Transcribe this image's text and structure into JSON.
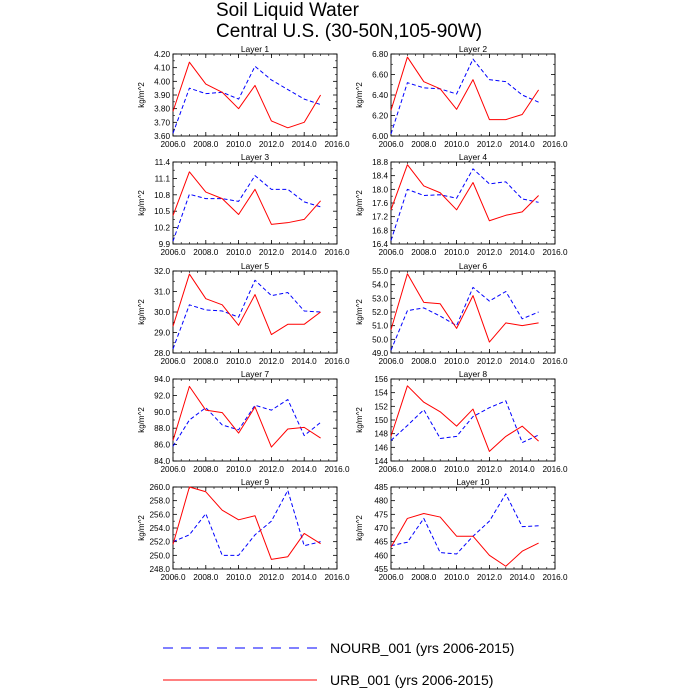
{
  "figure": {
    "title_line1": "Soil Liquid Water",
    "title_line2": "Central U.S. (30-50N,105-90W)",
    "legend": [
      {
        "label": "NOURB_001 (yrs 2006-2015)",
        "color": "#0000ff",
        "dash": true
      },
      {
        "label": "URB_001 (yrs 2006-2015)",
        "color": "#ff0000",
        "dash": false
      }
    ]
  },
  "chart_data": [
    {
      "type": "line",
      "title": "Layer 1",
      "ylabel": "kg/m^2",
      "xlim": [
        2006,
        2016
      ],
      "ylim": [
        3.6,
        4.2
      ],
      "xticks": [
        "2006.0",
        "2008.0",
        "2010.0",
        "2012.0",
        "2014.0",
        "2016.0"
      ],
      "yticks": [
        "3.60",
        "3.70",
        "3.80",
        "3.90",
        "4.00",
        "4.10",
        "4.20"
      ],
      "x": [
        2006,
        2007,
        2008,
        2009,
        2010,
        2011,
        2012,
        2013,
        2014,
        2015
      ],
      "series": [
        {
          "name": "NOURB_001 (yrs 2006-2015)",
          "values": [
            3.62,
            3.95,
            3.91,
            3.92,
            3.87,
            4.11,
            4.01,
            3.94,
            3.87,
            3.83
          ]
        },
        {
          "name": "URB_001 (yrs 2006-2015)",
          "values": [
            3.78,
            4.14,
            3.98,
            3.92,
            3.8,
            3.97,
            3.71,
            3.66,
            3.7,
            3.9
          ]
        }
      ]
    },
    {
      "type": "line",
      "title": "Layer 2",
      "ylabel": "kg/m^2",
      "xlim": [
        2006,
        2016
      ],
      "ylim": [
        6.0,
        6.8
      ],
      "xticks": [
        "2006.0",
        "2008.0",
        "2010.0",
        "2012.0",
        "2014.0",
        "2016.0"
      ],
      "yticks": [
        "6.00",
        "6.20",
        "6.40",
        "6.60",
        "6.80"
      ],
      "x": [
        2006,
        2007,
        2008,
        2009,
        2010,
        2011,
        2012,
        2013,
        2014,
        2015
      ],
      "series": [
        {
          "name": "NOURB_001 (yrs 2006-2015)",
          "values": [
            6.02,
            6.52,
            6.47,
            6.46,
            6.41,
            6.75,
            6.55,
            6.53,
            6.4,
            6.33
          ]
        },
        {
          "name": "URB_001 (yrs 2006-2015)",
          "values": [
            6.25,
            6.77,
            6.53,
            6.46,
            6.26,
            6.55,
            6.16,
            6.16,
            6.21,
            6.45
          ]
        }
      ]
    },
    {
      "type": "line",
      "title": "Layer 3",
      "ylabel": "kg/m^2",
      "xlim": [
        2006,
        2016
      ],
      "ylim": [
        9.9,
        11.4
      ],
      "xticks": [
        "2006.0",
        "2008.0",
        "2010.0",
        "2012.0",
        "2014.0",
        "2016.0"
      ],
      "yticks": [
        "9.9",
        "10.2",
        "10.5",
        "10.8",
        "11.1",
        "11.4"
      ],
      "x": [
        2006,
        2007,
        2008,
        2009,
        2010,
        2011,
        2012,
        2013,
        2014,
        2015
      ],
      "series": [
        {
          "name": "NOURB_001 (yrs 2006-2015)",
          "values": [
            9.95,
            10.81,
            10.73,
            10.73,
            10.68,
            11.15,
            10.9,
            10.9,
            10.67,
            10.58
          ]
        },
        {
          "name": "URB_001 (yrs 2006-2015)",
          "values": [
            10.42,
            11.22,
            10.85,
            10.73,
            10.44,
            10.9,
            10.26,
            10.29,
            10.35,
            10.69
          ]
        }
      ]
    },
    {
      "type": "line",
      "title": "Layer 4",
      "ylabel": "kg/m^2",
      "xlim": [
        2006,
        2016
      ],
      "ylim": [
        16.4,
        18.8
      ],
      "xticks": [
        "2006.0",
        "2008.0",
        "2010.0",
        "2012.0",
        "2014.0",
        "2016.0"
      ],
      "yticks": [
        "16.4",
        "16.8",
        "17.2",
        "17.6",
        "18.0",
        "18.4",
        "18.8"
      ],
      "x": [
        2006,
        2007,
        2008,
        2009,
        2010,
        2011,
        2012,
        2013,
        2014,
        2015
      ],
      "series": [
        {
          "name": "NOURB_001 (yrs 2006-2015)",
          "values": [
            16.5,
            18.0,
            17.82,
            17.84,
            17.74,
            18.6,
            18.16,
            18.22,
            17.72,
            17.62
          ]
        },
        {
          "name": "URB_001 (yrs 2006-2015)",
          "values": [
            17.4,
            18.72,
            18.1,
            17.9,
            17.4,
            18.2,
            17.08,
            17.24,
            17.34,
            17.82
          ]
        }
      ]
    },
    {
      "type": "line",
      "title": "Layer 5",
      "ylabel": "kg/m^2",
      "xlim": [
        2006,
        2016
      ],
      "ylim": [
        28.0,
        32.0
      ],
      "xticks": [
        "2006.0",
        "2008.0",
        "2010.0",
        "2012.0",
        "2014.0",
        "2016.0"
      ],
      "yticks": [
        "28.0",
        "29.0",
        "30.0",
        "31.0",
        "32.0"
      ],
      "x": [
        2006,
        2007,
        2008,
        2009,
        2010,
        2011,
        2012,
        2013,
        2014,
        2015
      ],
      "series": [
        {
          "name": "NOURB_001 (yrs 2006-2015)",
          "values": [
            28.2,
            30.35,
            30.1,
            30.05,
            29.75,
            31.55,
            30.8,
            30.95,
            30.05,
            30.0
          ]
        },
        {
          "name": "URB_001 (yrs 2006-2015)",
          "values": [
            29.3,
            31.85,
            30.65,
            30.35,
            29.35,
            30.85,
            28.9,
            29.4,
            29.4,
            30.0
          ]
        }
      ]
    },
    {
      "type": "line",
      "title": "Layer 6",
      "ylabel": "kg/m^2",
      "xlim": [
        2006,
        2016
      ],
      "ylim": [
        49.0,
        55.0
      ],
      "xticks": [
        "2006.0",
        "2008.0",
        "2010.0",
        "2012.0",
        "2014.0",
        "2016.0"
      ],
      "yticks": [
        "49.0",
        "50.0",
        "51.0",
        "52.0",
        "53.0",
        "54.0",
        "55.0"
      ],
      "x": [
        2006,
        2007,
        2008,
        2009,
        2010,
        2011,
        2012,
        2013,
        2014,
        2015
      ],
      "series": [
        {
          "name": "NOURB_001 (yrs 2006-2015)",
          "values": [
            49.2,
            52.1,
            52.3,
            51.7,
            51.0,
            53.8,
            52.8,
            53.5,
            51.5,
            52.0
          ]
        },
        {
          "name": "URB_001 (yrs 2006-2015)",
          "values": [
            50.7,
            54.8,
            52.7,
            52.6,
            50.8,
            53.2,
            49.8,
            51.2,
            51.0,
            51.2
          ]
        }
      ]
    },
    {
      "type": "line",
      "title": "Layer 7",
      "ylabel": "kg/m^2",
      "xlim": [
        2006,
        2016
      ],
      "ylim": [
        84.0,
        94.0
      ],
      "xticks": [
        "2006.0",
        "2008.0",
        "2010.0",
        "2012.0",
        "2014.0",
        "2016.0"
      ],
      "yticks": [
        "84.0",
        "86.0",
        "88.0",
        "90.0",
        "92.0",
        "94.0"
      ],
      "x": [
        2006,
        2007,
        2008,
        2009,
        2010,
        2011,
        2012,
        2013,
        2014,
        2015
      ],
      "series": [
        {
          "name": "NOURB_001 (yrs 2006-2015)",
          "values": [
            85.8,
            89.0,
            90.5,
            88.4,
            87.8,
            90.8,
            90.2,
            91.5,
            87.1,
            88.7
          ]
        },
        {
          "name": "URB_001 (yrs 2006-2015)",
          "values": [
            86.5,
            93.1,
            90.2,
            89.9,
            87.4,
            90.6,
            85.7,
            87.9,
            88.1,
            86.8
          ]
        }
      ]
    },
    {
      "type": "line",
      "title": "Layer 8",
      "ylabel": "kg/m^2",
      "xlim": [
        2006,
        2016
      ],
      "ylim": [
        144,
        156
      ],
      "xticks": [
        "2006.0",
        "2008.0",
        "2010.0",
        "2012.0",
        "2014.0",
        "2016.0"
      ],
      "yticks": [
        "144",
        "146",
        "148",
        "150",
        "152",
        "154",
        "156"
      ],
      "x": [
        2006,
        2007,
        2008,
        2009,
        2010,
        2011,
        2012,
        2013,
        2014,
        2015
      ],
      "series": [
        {
          "name": "NOURB_001 (yrs 2006-2015)",
          "values": [
            147.0,
            149.2,
            151.5,
            147.3,
            147.6,
            150.5,
            151.8,
            152.8,
            146.7,
            147.8
          ]
        },
        {
          "name": "URB_001 (yrs 2006-2015)",
          "values": [
            147.6,
            155.0,
            152.6,
            151.2,
            149.1,
            151.6,
            145.4,
            147.6,
            149.1,
            146.9
          ]
        }
      ]
    },
    {
      "type": "line",
      "title": "Layer 9",
      "ylabel": "kg/m^2",
      "xlim": [
        2006,
        2016
      ],
      "ylim": [
        248.0,
        260.0
      ],
      "xticks": [
        "2006.0",
        "2008.0",
        "2010.0",
        "2012.0",
        "2014.0",
        "2016.0"
      ],
      "yticks": [
        "248.0",
        "250.0",
        "252.0",
        "254.0",
        "256.0",
        "258.0",
        "260.0"
      ],
      "x": [
        2006,
        2007,
        2008,
        2009,
        2010,
        2011,
        2012,
        2013,
        2014,
        2015
      ],
      "series": [
        {
          "name": "NOURB_001 (yrs 2006-2015)",
          "values": [
            252.0,
            253.0,
            256.1,
            250.0,
            250.0,
            253.0,
            255.0,
            259.5,
            251.4,
            252.0
          ]
        },
        {
          "name": "URB_001 (yrs 2006-2015)",
          "values": [
            251.6,
            260.0,
            259.3,
            256.6,
            255.2,
            255.8,
            249.4,
            249.8,
            253.2,
            251.7
          ]
        }
      ]
    },
    {
      "type": "line",
      "title": "Layer 10",
      "ylabel": "kg/m^2",
      "xlim": [
        2006,
        2016
      ],
      "ylim": [
        455,
        485
      ],
      "xticks": [
        "2006.0",
        "2008.0",
        "2010.0",
        "2012.0",
        "2014.0",
        "2016.0"
      ],
      "yticks": [
        "455",
        "460",
        "465",
        "470",
        "475",
        "480",
        "485"
      ],
      "x": [
        2006,
        2007,
        2008,
        2009,
        2010,
        2011,
        2012,
        2013,
        2014,
        2015
      ],
      "series": [
        {
          "name": "NOURB_001 (yrs 2006-2015)",
          "values": [
            463.5,
            464.8,
            473.5,
            461.0,
            460.5,
            467.0,
            472.5,
            482.5,
            470.5,
            470.8
          ]
        },
        {
          "name": "URB_001 (yrs 2006-2015)",
          "values": [
            463.0,
            473.5,
            475.3,
            474.0,
            467.0,
            467.0,
            460.0,
            456.0,
            461.5,
            464.5
          ]
        }
      ]
    }
  ]
}
